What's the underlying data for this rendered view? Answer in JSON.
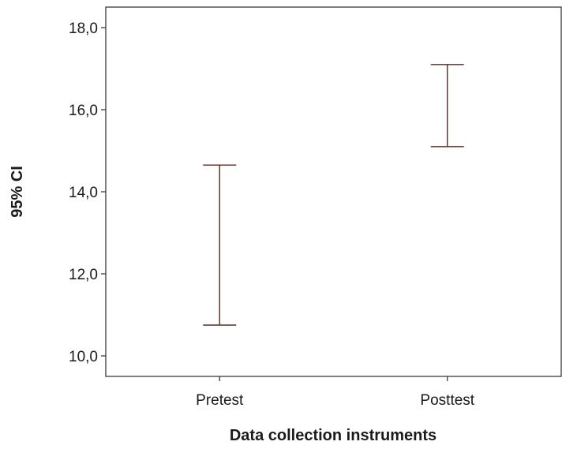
{
  "chart_data": {
    "type": "errorbar",
    "title": "",
    "xlabel": "Data collection instruments",
    "ylabel": "95% CI",
    "categories": [
      "Pretest",
      "Posttest"
    ],
    "series": [
      {
        "lower": [
          10.75,
          15.1
        ],
        "upper": [
          14.65,
          17.1
        ]
      }
    ],
    "ylim": [
      9.5,
      18.5
    ],
    "yticks": [
      10.0,
      12.0,
      14.0,
      16.0,
      18.0
    ],
    "ytick_labels": [
      "10,0",
      "12,0",
      "14,0",
      "16,0",
      "18,0"
    ],
    "grid": false,
    "legend": "none",
    "colors": {
      "errorbar": "#5a2b1e",
      "axis": "#3a3a3a"
    }
  }
}
